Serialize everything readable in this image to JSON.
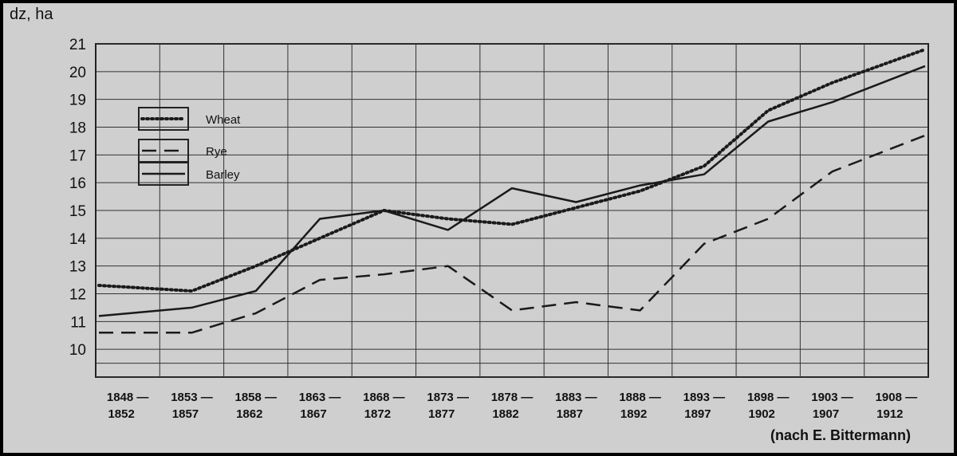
{
  "chart_data": {
    "type": "line",
    "y_unit_label": "dz, ha",
    "categories": [
      [
        "1848 —",
        "1852"
      ],
      [
        "1853 —",
        "1857"
      ],
      [
        "1858 —",
        "1862"
      ],
      [
        "1863 —",
        "1867"
      ],
      [
        "1868 —",
        "1872"
      ],
      [
        "1873 —",
        "1877"
      ],
      [
        "1878 —",
        "1882"
      ],
      [
        "1883 —",
        "1887"
      ],
      [
        "1888 —",
        "1892"
      ],
      [
        "1893 —",
        "1897"
      ],
      [
        "1898 —",
        "1902"
      ],
      [
        "1903 —",
        "1907"
      ],
      [
        "1908 —",
        "1912"
      ]
    ],
    "y_ticks": [
      10,
      11,
      12,
      13,
      14,
      15,
      16,
      17,
      18,
      19,
      20,
      21
    ],
    "ylim": [
      9,
      21
    ],
    "grid": true,
    "legend_position": "top-left",
    "series": [
      {
        "name": "Wheat",
        "style": "dotted",
        "values": [
          12.3,
          12.1,
          13.0,
          14.0,
          15.0,
          14.7,
          14.5,
          15.1,
          15.7,
          16.6,
          18.6,
          19.6,
          20.8
        ]
      },
      {
        "name": "Rye",
        "style": "dashed",
        "values": [
          10.6,
          10.6,
          11.3,
          12.5,
          12.7,
          13.0,
          11.4,
          11.7,
          11.4,
          13.8,
          14.7,
          16.4,
          17.7
        ]
      },
      {
        "name": "Barley",
        "style": "solid",
        "values": [
          11.2,
          11.5,
          12.1,
          14.7,
          15.0,
          14.3,
          15.8,
          15.3,
          15.9,
          16.3,
          18.2,
          18.9,
          20.2
        ]
      }
    ],
    "source": "(nach E. Bittermann)"
  }
}
